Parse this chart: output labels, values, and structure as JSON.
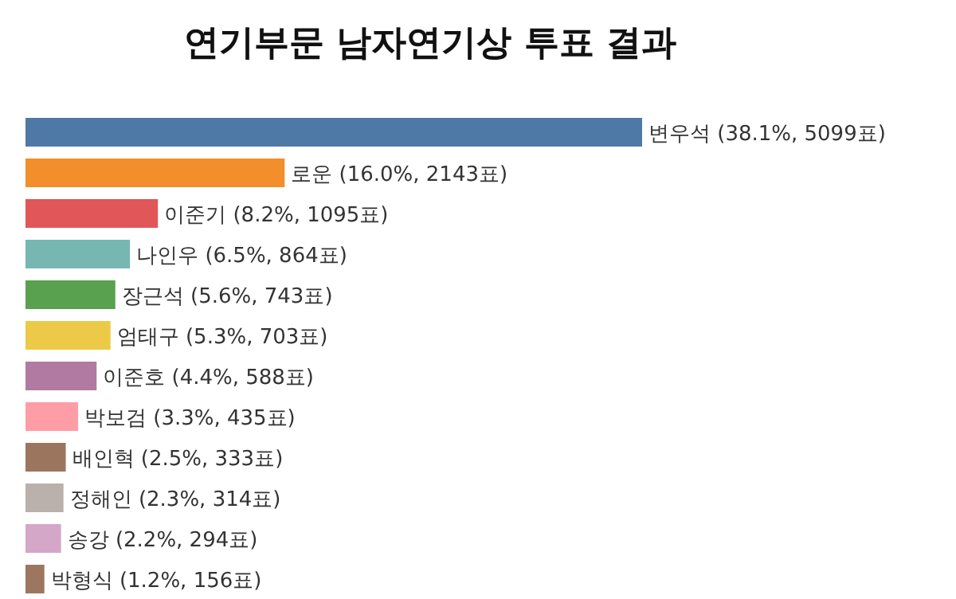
{
  "chart_data": {
    "type": "bar",
    "orientation": "horizontal",
    "title": "연기부문 남자연기상 투표 결과",
    "categories": [
      null,
      null,
      null,
      null,
      null,
      null,
      null,
      null,
      null,
      null,
      null,
      null
    ],
    "values": [
      5099,
      2143,
      1095,
      864,
      743,
      703,
      588,
      435,
      333,
      314,
      294,
      156
    ],
    "value_labels": [
      "변우석 (38.1%, 5099표)",
      "로운 (16.0%, 2143표)",
      "이준기 (8.2%, 1095표)",
      "나인우 (6.5%, 864표)",
      "장근석 (5.6%, 743표)",
      "엄태구 (5.3%, 703표)",
      "이준호 (4.4%, 588표)",
      "박보검 (3.3%, 435표)",
      "배인혁 (2.5%, 333표)",
      "정해인 (2.3%, 314표)",
      "송강 (2.2%, 294표)",
      "박형식 (1.2%, 156표)"
    ],
    "colors": [
      "#4e79a7",
      "#f28e2b",
      "#e15759",
      "#76b7b2",
      "#59a14f",
      "#edc948",
      "#b07aa1",
      "#ff9da7",
      "#9c755f",
      "#bab0ac",
      "#d4a6c8",
      "#9d7660"
    ]
  }
}
